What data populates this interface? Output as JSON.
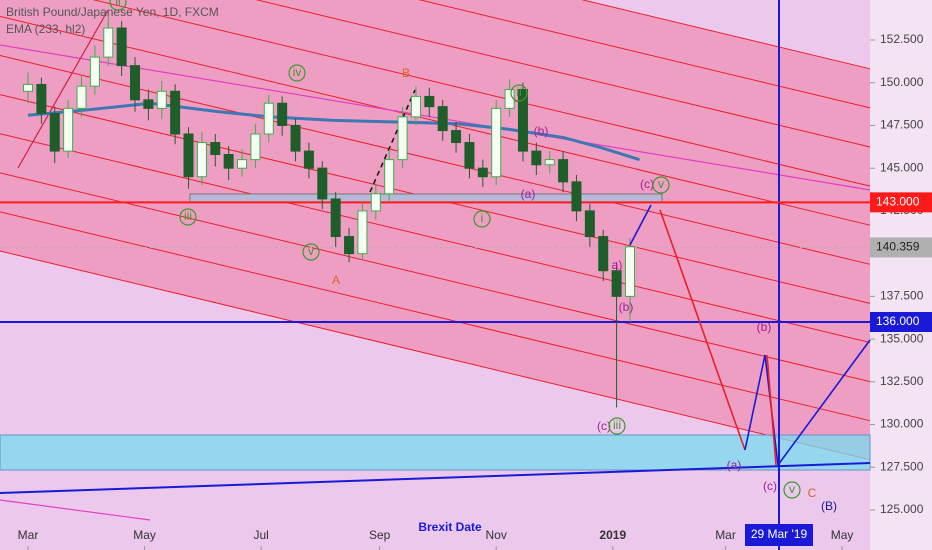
{
  "chart_data": {
    "type": "candlestick",
    "title": "British Pound/Japanese Yen, 1D, FXCM",
    "up_color": "#3fae49",
    "down_color": "#1f5e2a",
    "x": [
      0,
      7,
      14,
      21,
      28,
      35,
      42,
      49,
      56,
      63,
      70,
      77,
      84,
      91,
      98,
      105,
      112,
      119,
      126,
      133,
      140,
      147,
      154,
      161,
      168,
      175,
      182,
      189,
      196,
      203,
      210,
      217,
      224,
      231,
      238,
      245,
      252,
      259,
      266,
      273,
      280,
      287,
      294,
      301,
      308,
      315
    ],
    "open": [
      149.5,
      149.9,
      148.2,
      146.0,
      148.5,
      149.8,
      151.5,
      153.2,
      151.0,
      149.0,
      148.5,
      149.5,
      147.0,
      144.5,
      146.5,
      145.8,
      145.0,
      145.5,
      147.0,
      148.8,
      147.5,
      146.0,
      145.0,
      143.2,
      141.0,
      140.0,
      142.5,
      143.5,
      145.5,
      148.0,
      149.2,
      148.6,
      147.2,
      146.5,
      145.0,
      144.5,
      148.5,
      149.6,
      146.0,
      145.2,
      145.5,
      144.2,
      142.5,
      141.0,
      139.0,
      137.5
    ],
    "high": [
      150.6,
      150.3,
      148.6,
      149.0,
      150.4,
      152.2,
      153.9,
      153.6,
      151.5,
      149.6,
      150.1,
      149.9,
      147.4,
      147.1,
      147.0,
      146.3,
      146.1,
      147.6,
      149.3,
      149.2,
      147.9,
      146.5,
      145.4,
      143.6,
      141.5,
      143.0,
      144.1,
      146.1,
      148.6,
      149.8,
      149.7,
      149.0,
      147.7,
      147.0,
      145.5,
      149.0,
      150.2,
      150.0,
      146.5,
      146.0,
      146.0,
      144.6,
      142.9,
      141.4,
      139.5,
      140.9
    ],
    "low": [
      148.8,
      147.6,
      145.3,
      145.6,
      148.0,
      149.3,
      151.0,
      150.4,
      148.3,
      147.8,
      147.9,
      146.4,
      143.8,
      144.0,
      145.1,
      144.3,
      144.5,
      145.0,
      146.5,
      146.9,
      145.4,
      144.4,
      142.6,
      140.4,
      139.5,
      139.6,
      142.0,
      143.1,
      145.0,
      147.5,
      148.0,
      146.6,
      145.9,
      144.4,
      143.9,
      144.0,
      148.0,
      145.4,
      144.6,
      144.7,
      143.6,
      141.9,
      140.4,
      138.4,
      131.0,
      136.0
    ],
    "close": [
      149.9,
      148.2,
      146.0,
      148.5,
      149.8,
      151.5,
      153.2,
      151.0,
      149.0,
      148.5,
      149.5,
      147.0,
      144.5,
      146.5,
      145.8,
      145.0,
      145.5,
      147.0,
      148.8,
      147.5,
      146.0,
      145.0,
      143.2,
      141.0,
      140.0,
      142.5,
      143.5,
      145.5,
      148.0,
      149.2,
      148.6,
      147.2,
      146.5,
      145.0,
      144.5,
      148.5,
      149.6,
      146.0,
      145.2,
      145.5,
      144.2,
      142.5,
      141.0,
      139.0,
      137.5,
      140.4
    ],
    "ema": {
      "name": "EMA (233, hl2)",
      "color": "#3d78b5",
      "x": [
        0,
        30,
        64,
        100,
        127,
        160,
        194,
        225,
        250,
        280,
        300,
        320
      ],
      "values": [
        148.1,
        148.4,
        148.8,
        148.3,
        148.0,
        147.8,
        147.7,
        147.6,
        147.3,
        146.8,
        146.2,
        145.5
      ]
    },
    "levels": [
      {
        "value": 143,
        "label": "143.000",
        "color": "#ff1a1a"
      },
      {
        "value": 136,
        "label": "136.000",
        "color": "#1a1ad6"
      },
      {
        "value": 140.359,
        "label": "140.359",
        "color": "#b0b0b0"
      }
    ],
    "xlim": [
      -14.65,
      440.6
    ],
    "xticks": [
      {
        "value": 0,
        "label": "Mar"
      },
      {
        "value": 61,
        "label": "May"
      },
      {
        "value": 122,
        "label": "Jul"
      },
      {
        "value": 184,
        "label": "Sep"
      },
      {
        "value": 245,
        "label": "Nov"
      },
      {
        "value": 306,
        "label": "2019"
      },
      {
        "value": 365,
        "label": "Mar"
      },
      {
        "value": 426,
        "label": "May"
      }
    ],
    "ylim": [
      122.66,
      154.84
    ],
    "yticks": [
      {
        "value": 125,
        "label": "125.000"
      },
      {
        "value": 127.5,
        "label": "127.500"
      },
      {
        "value": 130,
        "label": "130.000"
      },
      {
        "value": 132.5,
        "label": "132.500"
      },
      {
        "value": 135,
        "label": "135.000"
      },
      {
        "value": 137.5,
        "label": "137.500"
      },
      {
        "value": 142.5,
        "label": "142.500"
      },
      {
        "value": 145,
        "label": "145.000"
      },
      {
        "value": 147.5,
        "label": "147.500"
      },
      {
        "value": 150,
        "label": "150.000"
      },
      {
        "value": 152.5,
        "label": "152.500"
      }
    ],
    "annotations": [
      {
        "text": "ii",
        "color": "#3a9a2a"
      },
      {
        "text": "iv",
        "color": "#3a9a2a"
      },
      {
        "text": "B",
        "color": "#d9641a"
      },
      {
        "text": "(b)",
        "color": "#a0209a"
      },
      {
        "text": "ii",
        "color": "#3a9a2a"
      },
      {
        "text": "iii",
        "color": "#3a9a2a"
      },
      {
        "text": "v",
        "color": "#3a9a2a"
      },
      {
        "text": "A",
        "color": "#d9641a"
      },
      {
        "text": "i",
        "color": "#3a9a2a"
      },
      {
        "text": "(a)",
        "color": "#a0209a"
      },
      {
        "text": "(c)",
        "color": "#a0209a"
      },
      {
        "text": "v",
        "color": "#3a9a2a"
      },
      {
        "text": "a)",
        "color": "#a0209a"
      },
      {
        "text": "(b)",
        "color": "#a0209a"
      },
      {
        "text": "(c)",
        "color": "#a0209a"
      },
      {
        "text": "iii",
        "color": "#3a9a2a"
      },
      {
        "text": "(b)",
        "color": "#a0209a"
      },
      {
        "text": "(a)",
        "color": "#a0209a"
      },
      {
        "text": "(c)",
        "color": "#a0209a"
      },
      {
        "text": "v",
        "color": "#3a9a2a"
      },
      {
        "text": "C",
        "color": "#d9641a"
      },
      {
        "text": "(B)",
        "color": "#1a1a8a"
      },
      {
        "text": "Brexit Date",
        "color": "#1a1ad6"
      },
      {
        "text": "29 Mar '19",
        "color": "#1a1ad6"
      }
    ]
  }
}
